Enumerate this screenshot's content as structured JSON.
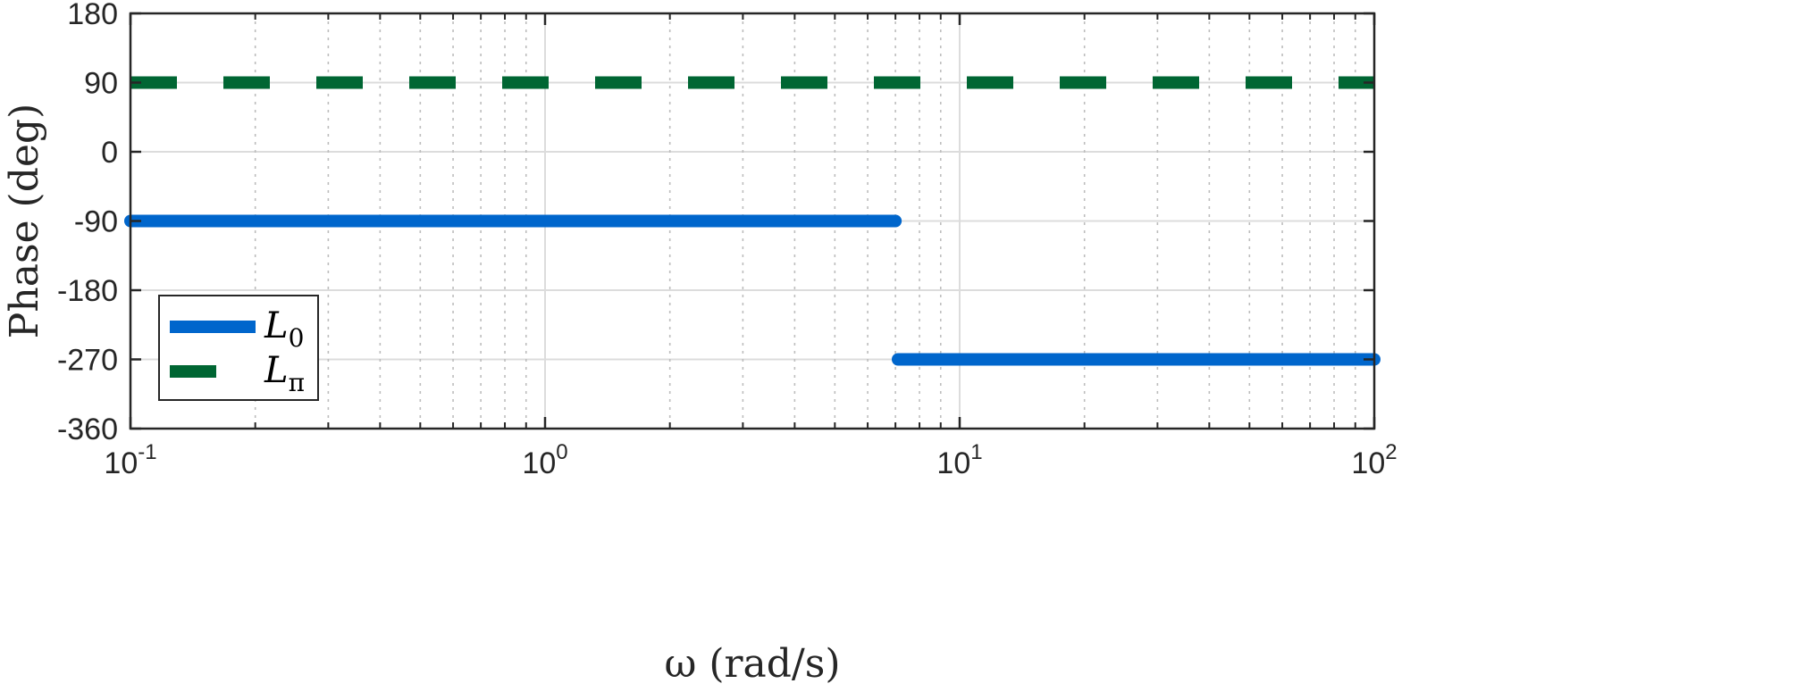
{
  "chart_data": {
    "type": "line",
    "title": "",
    "xlabel": "ω (rad/s)",
    "ylabel": "Phase (deg)",
    "xscale": "log",
    "xlim": [
      0.1,
      100
    ],
    "ylim": [
      -360,
      180
    ],
    "x_ticks": [
      {
        "base": "10",
        "exp": "-1",
        "value": 0.1
      },
      {
        "base": "10",
        "exp": "0",
        "value": 1
      },
      {
        "base": "10",
        "exp": "1",
        "value": 10
      },
      {
        "base": "10",
        "exp": "2",
        "value": 100
      }
    ],
    "y_ticks": [
      {
        "label": "180",
        "value": 180
      },
      {
        "label": "90",
        "value": 90
      },
      {
        "label": "0",
        "value": 0
      },
      {
        "label": "-90",
        "value": -90
      },
      {
        "label": "-180",
        "value": -180
      },
      {
        "label": "-270",
        "value": -270
      },
      {
        "label": "-360",
        "value": -360
      }
    ],
    "grid": true,
    "legend_position": "bottom-left",
    "series": [
      {
        "name": "L",
        "subscript": "0",
        "color": "#0066cc",
        "style": "solid",
        "segments": [
          {
            "x": [
              0.1,
              7.0
            ],
            "y": [
              -90,
              -90
            ]
          },
          {
            "x": [
              7.1,
              100
            ],
            "y": [
              -270,
              -270
            ]
          }
        ]
      },
      {
        "name": "L",
        "subscript": "π",
        "color": "#006633",
        "style": "dashed",
        "segments": [
          {
            "x": [
              0.1,
              100
            ],
            "y": [
              90,
              90
            ]
          }
        ]
      }
    ]
  }
}
